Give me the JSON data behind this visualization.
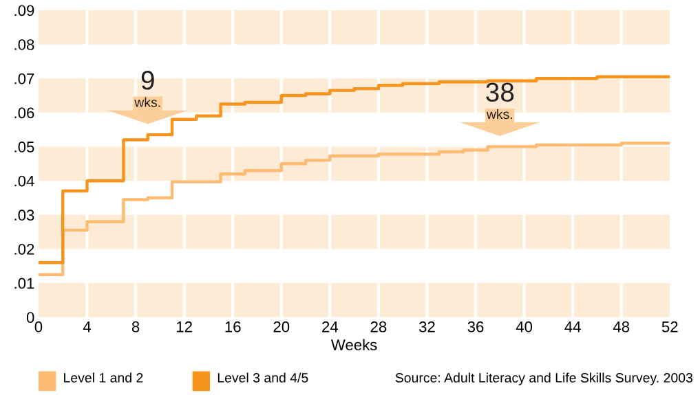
{
  "chart_data": {
    "type": "step",
    "xlabel": "Weeks",
    "series": [
      {
        "name": "Level 1 and 2",
        "color": "#fdbb74",
        "x": [
          0,
          2,
          4,
          7,
          9,
          11,
          15,
          17,
          20,
          22,
          24,
          28,
          33,
          35,
          37,
          41,
          48,
          52
        ],
        "values": [
          0.0125,
          0.0255,
          0.028,
          0.0345,
          0.035,
          0.0397,
          0.042,
          0.043,
          0.045,
          0.046,
          0.0473,
          0.0478,
          0.0485,
          0.049,
          0.05,
          0.0505,
          0.051,
          0.051
        ]
      },
      {
        "name": "Level 3 and 4/5",
        "color": "#f7941d",
        "x": [
          0,
          2,
          4,
          7,
          9,
          11,
          13,
          15,
          17,
          20,
          22,
          24,
          26,
          28,
          30,
          33,
          37,
          41,
          46,
          52
        ],
        "values": [
          0.016,
          0.037,
          0.04,
          0.052,
          0.0535,
          0.058,
          0.059,
          0.0625,
          0.063,
          0.065,
          0.0655,
          0.0665,
          0.067,
          0.068,
          0.0685,
          0.069,
          0.0693,
          0.07,
          0.0705,
          0.0705
        ]
      }
    ],
    "xlim": [
      0,
      52
    ],
    "xticks": [
      0,
      4,
      8,
      12,
      16,
      20,
      24,
      28,
      32,
      36,
      40,
      44,
      48,
      52
    ],
    "ylim": [
      0,
      0.09
    ],
    "yticks": [
      0,
      {
        "value": 0.01,
        "label": ".01"
      },
      {
        "value": 0.02,
        "label": ".02"
      },
      {
        "value": 0.03,
        "label": ".03"
      },
      {
        "value": 0.04,
        "label": ".04"
      },
      {
        "value": 0.05,
        "label": ".05"
      },
      {
        "value": 0.06,
        "label": ".06"
      },
      {
        "value": 0.07,
        "label": ".07"
      },
      {
        "value": 0.08,
        "label": ".08"
      },
      {
        "value": 0.09,
        "label": ".09"
      }
    ],
    "grid": "x",
    "legend": "bottom left",
    "bands": [
      {
        "axis": "y",
        "from": 0,
        "to": 0.01,
        "color": "#fdebd6"
      },
      {
        "axis": "y",
        "from": 0.02,
        "to": 0.03,
        "color": "#fdebd6"
      },
      {
        "axis": "y",
        "from": 0.04,
        "to": 0.05,
        "color": "#fdebd6"
      },
      {
        "axis": "y",
        "from": 0.06,
        "to": 0.07,
        "color": "#fdebd6"
      },
      {
        "axis": "y",
        "from": 0.08,
        "to": 0.09,
        "color": "#fdebd6"
      }
    ],
    "annotations": [
      {
        "text": "9 wks.",
        "x": 9,
        "y": 0.0535
      },
      {
        "text": "38 wks.",
        "x": 38,
        "y": 0.05
      },
      "Source: Adult Literacy and Life Skills Survey. 2003"
    ]
  }
}
